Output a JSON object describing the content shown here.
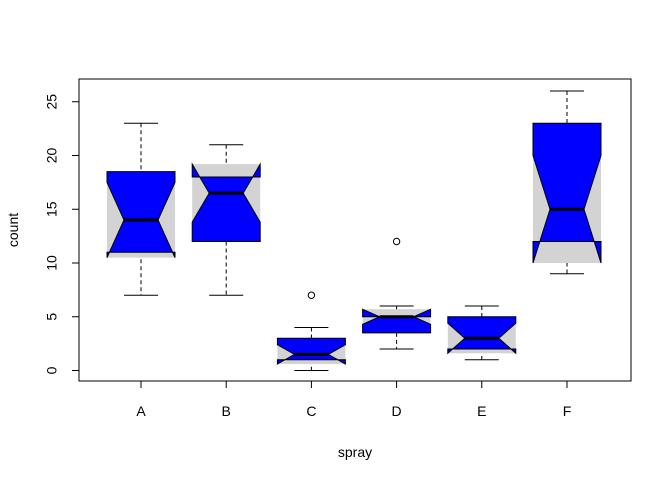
{
  "chart_data": {
    "type": "boxplot",
    "notched": true,
    "xlabel": "spray",
    "ylabel": "count",
    "categories": [
      "A",
      "B",
      "C",
      "D",
      "E",
      "F"
    ],
    "y_ticks": [
      0,
      5,
      10,
      15,
      20,
      25
    ],
    "ylim": [
      -1,
      26
    ],
    "colors": {
      "notch_fill": "#d3d3d3",
      "box_fill": "#0000ff",
      "median": "#000000",
      "outline": "#000000"
    },
    "boxes": [
      {
        "category": "A",
        "min": 7,
        "q1": 11,
        "median": 14,
        "q3": 18.5,
        "max": 23,
        "notch_low": 10.5,
        "notch_high": 17.5,
        "outliers": []
      },
      {
        "category": "B",
        "min": 7,
        "q1": 12,
        "median": 16.5,
        "q3": 18,
        "max": 21,
        "notch_low": 13.8,
        "notch_high": 19.2,
        "outliers": []
      },
      {
        "category": "C",
        "min": 0,
        "q1": 1,
        "median": 1.5,
        "q3": 3,
        "max": 4,
        "notch_low": 0.6,
        "notch_high": 2.4,
        "outliers": [
          7
        ]
      },
      {
        "category": "D",
        "min": 2,
        "q1": 3.5,
        "median": 5,
        "q3": 5,
        "max": 6,
        "notch_low": 4.3,
        "notch_high": 5.7,
        "outliers": [
          12
        ]
      },
      {
        "category": "E",
        "min": 1,
        "q1": 2,
        "median": 3,
        "q3": 5,
        "max": 6,
        "notch_low": 1.6,
        "notch_high": 4.4,
        "outliers": []
      },
      {
        "category": "F",
        "min": 9,
        "q1": 12,
        "median": 15,
        "q3": 23,
        "max": 26,
        "notch_low": 10,
        "notch_high": 20,
        "outliers": []
      }
    ]
  }
}
